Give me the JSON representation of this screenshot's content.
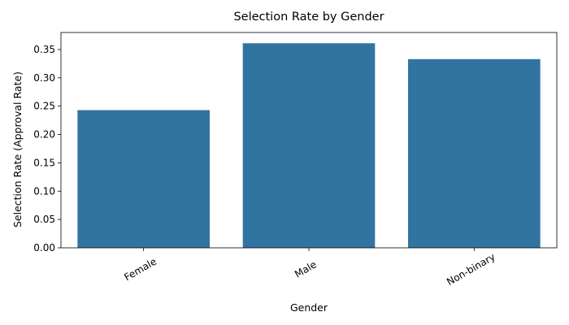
{
  "chart_data": {
    "type": "bar",
    "title": "Selection Rate by Gender",
    "xlabel": "Gender",
    "ylabel": "Selection Rate (Approval Rate)",
    "categories": [
      "Female",
      "Male",
      "Non-binary"
    ],
    "values": [
      0.243,
      0.361,
      0.333
    ],
    "ylim": [
      0,
      0.38
    ],
    "yticks": [
      0.0,
      0.05,
      0.1,
      0.15,
      0.2,
      0.25,
      0.3,
      0.35
    ],
    "ytick_labels": [
      "0.00",
      "0.05",
      "0.10",
      "0.15",
      "0.20",
      "0.25",
      "0.30",
      "0.35"
    ],
    "grid": false,
    "legend": "none",
    "bar_color": "#3274a1",
    "x_tick_rotation_deg": 30
  }
}
